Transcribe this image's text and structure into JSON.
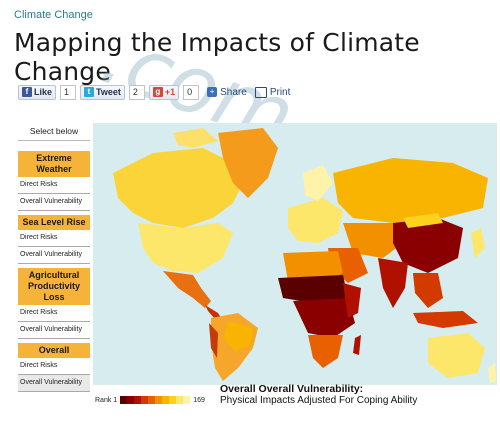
{
  "breadcrumb": "Climate Change",
  "page_title": "Mapping the Impacts of Climate Change",
  "social": {
    "like_label": "Like",
    "like_count": "1",
    "tweet_label": "Tweet",
    "tweet_count": "2",
    "gplus_label": "+1",
    "gplus_count": "0",
    "share_label": "Share",
    "print_label": "Print"
  },
  "watermark": ".com",
  "sidebar": {
    "header": "Select below",
    "categories": [
      {
        "label": "Extreme Weather",
        "items": [
          "Direct Risks",
          "Overall Vulnerability"
        ]
      },
      {
        "label": "Sea Level Rise",
        "items": [
          "Direct Risks",
          "Overall Vulnerability"
        ]
      },
      {
        "label": "Agricultural Productivity Loss",
        "items": [
          "Direct Risks",
          "Overall Vulnerability"
        ]
      },
      {
        "label": "Overall",
        "items": [
          "Direct Risks",
          "Overall Vulnerability"
        ]
      }
    ]
  },
  "legend": {
    "min_label": "Rank 1",
    "max_label": "169",
    "colors": [
      "#5a0000",
      "#8a0000",
      "#b01000",
      "#d23a00",
      "#e86000",
      "#f29000",
      "#f8b400",
      "#fcd21c",
      "#fde76a",
      "#fef3a8"
    ]
  },
  "caption": {
    "title": "Overall Overall Vulnerability:",
    "subtitle": "Physical Impacts Adjusted For Coping Ability"
  },
  "colors": {
    "ocean": "#d6ecef",
    "category_bg": "#f6b33a",
    "link": "#2e7a8c"
  }
}
